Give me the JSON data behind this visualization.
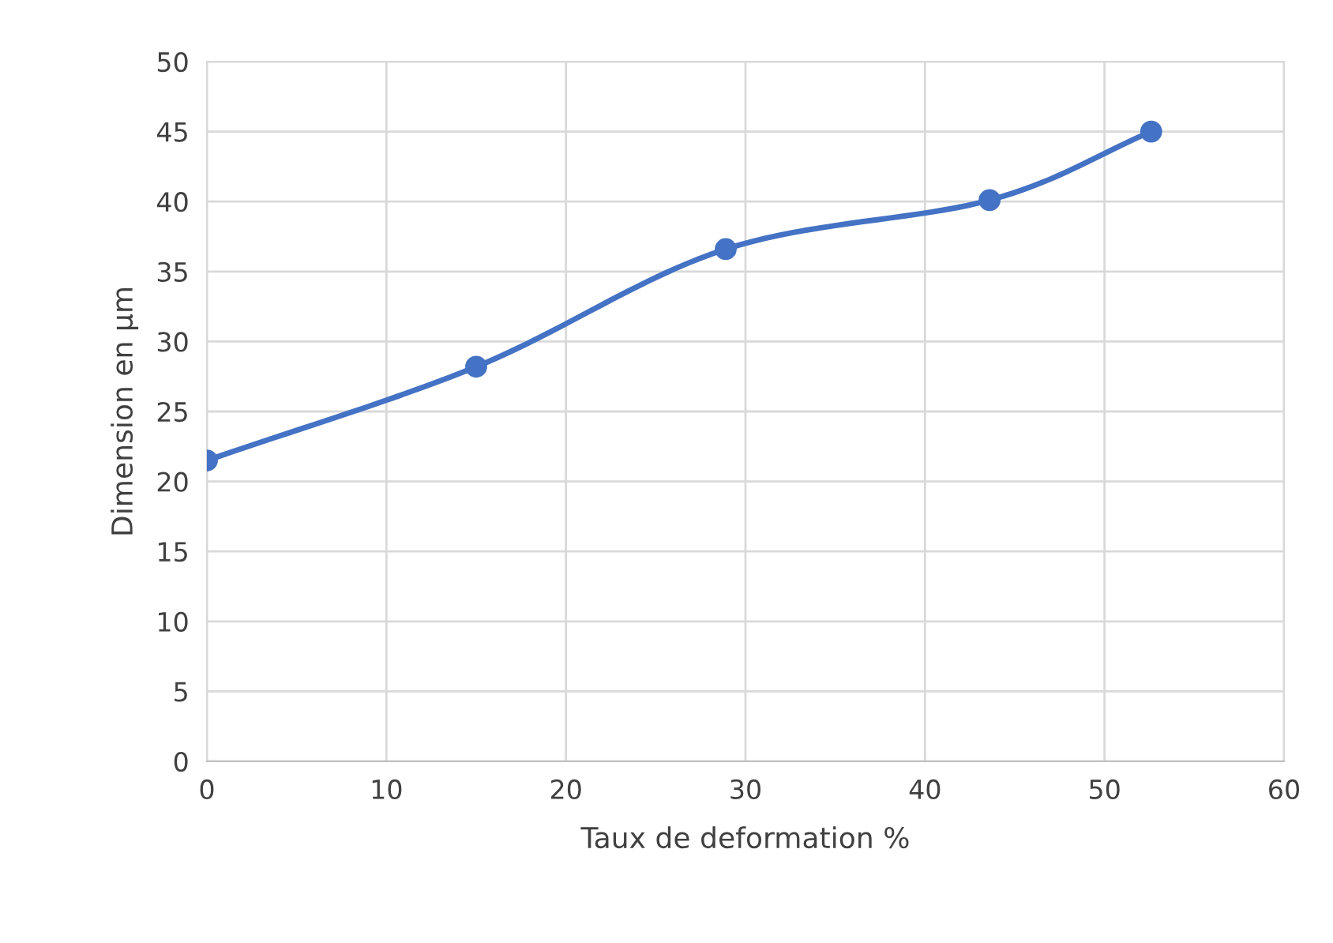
{
  "chart_data": {
    "type": "line",
    "xlabel": "Taux de deformation %",
    "ylabel": "Dimension en µm",
    "x": [
      0,
      15,
      28.9,
      43.6,
      52.6
    ],
    "series": [
      {
        "color": "#4472c4",
        "values": [
          21.5,
          28.2,
          36.6,
          40.1,
          45.0
        ]
      }
    ],
    "xlim": [
      0,
      60
    ],
    "xticks": [
      0,
      10,
      20,
      30,
      40,
      50,
      60
    ],
    "ylim": [
      0,
      50
    ],
    "yticks": [
      0,
      5,
      10,
      15,
      20,
      25,
      30,
      35,
      40,
      45,
      50
    ],
    "grid": true,
    "marker": "circle",
    "line_style": "solid"
  }
}
